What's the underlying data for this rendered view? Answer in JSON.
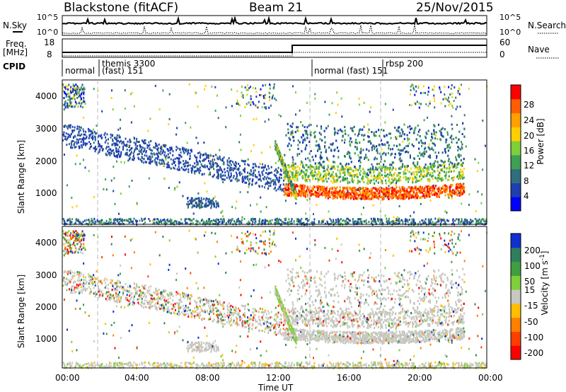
{
  "header": {
    "station": "Blackstone (fitACF)",
    "beam": "Beam 21",
    "date": "25/Nov/2015"
  },
  "side_labels": {
    "nsky": "N.Sky",
    "freq_line1": "Freq.",
    "freq_line2": "[MHz]",
    "cpid": "CPID",
    "nsearch": "N.Search",
    "nave": "Nave"
  },
  "noise_axis": {
    "left_top": "10^5",
    "left_bottom": "10^0",
    "right_top": "10^5",
    "right_bottom": "10^0"
  },
  "freq_axis": {
    "ticks_left": [
      "18",
      "8"
    ],
    "ticks_right": [
      "60",
      "0"
    ]
  },
  "cpid_labels": [
    "normal",
    "themis 3300",
    "(fast) 151",
    "normal (fast) 151",
    "rbsp 200"
  ],
  "x_axis": {
    "label": "Time UT",
    "ticks": [
      "00:00",
      "04:00",
      "08:00",
      "12:00",
      "16:00",
      "20:00",
      "00:00"
    ]
  },
  "chart_data": [
    {
      "type": "heatmap",
      "title": "",
      "ylabel": "Slant Range [km]",
      "yticks": [
        "1000",
        "2000",
        "3000",
        "4000"
      ],
      "ylim": [
        180,
        4500
      ],
      "xlim": [
        0,
        24
      ],
      "colorbar": {
        "label": "Power [dB]",
        "ticks": [
          "4",
          "8",
          "12",
          "16",
          "20",
          "24",
          "28"
        ],
        "colors": [
          "#0000ff",
          "#1f3fb0",
          "#2f6e7a",
          "#3f9f55",
          "#7fcf3a",
          "#ffcf00",
          "#ff9f00",
          "#ff5f00",
          "#ff0000"
        ]
      },
      "regions": [
        {
          "t": [
            12.5,
            22.5
          ],
          "range": [
            900,
            1500
          ],
          "level": "high"
        },
        {
          "t": [
            13.0,
            23.0
          ],
          "range": [
            1500,
            2600
          ],
          "level": "mid"
        },
        {
          "t": [
            0.0,
            12.5
          ],
          "range": [
            1500,
            3000
          ],
          "level": "low"
        },
        {
          "t": [
            7.0,
            8.8
          ],
          "range": [
            700,
            1000
          ],
          "level": "low"
        }
      ]
    },
    {
      "type": "heatmap",
      "title": "",
      "ylabel": "Slant Range [km]",
      "yticks": [
        "1000",
        "2000",
        "3000",
        "4000"
      ],
      "ylim": [
        180,
        4500
      ],
      "xlim": [
        0,
        24
      ],
      "colorbar": {
        "label": "Velocity [m s-1]",
        "ticks": [
          "200",
          "100",
          "50",
          "15",
          "-15",
          "-50",
          "-100",
          "-200"
        ],
        "colors": [
          "#1030d0",
          "#2f7f5f",
          "#3f9f3f",
          "#7fcf3a",
          "#c8c8c0",
          "#ffbf00",
          "#ff7f00",
          "#ff3f00",
          "#ff0000"
        ]
      }
    }
  ],
  "colors": {
    "frame": "#000000",
    "dashed": "#bbbbbb",
    "ground": "#c8c8c0"
  }
}
